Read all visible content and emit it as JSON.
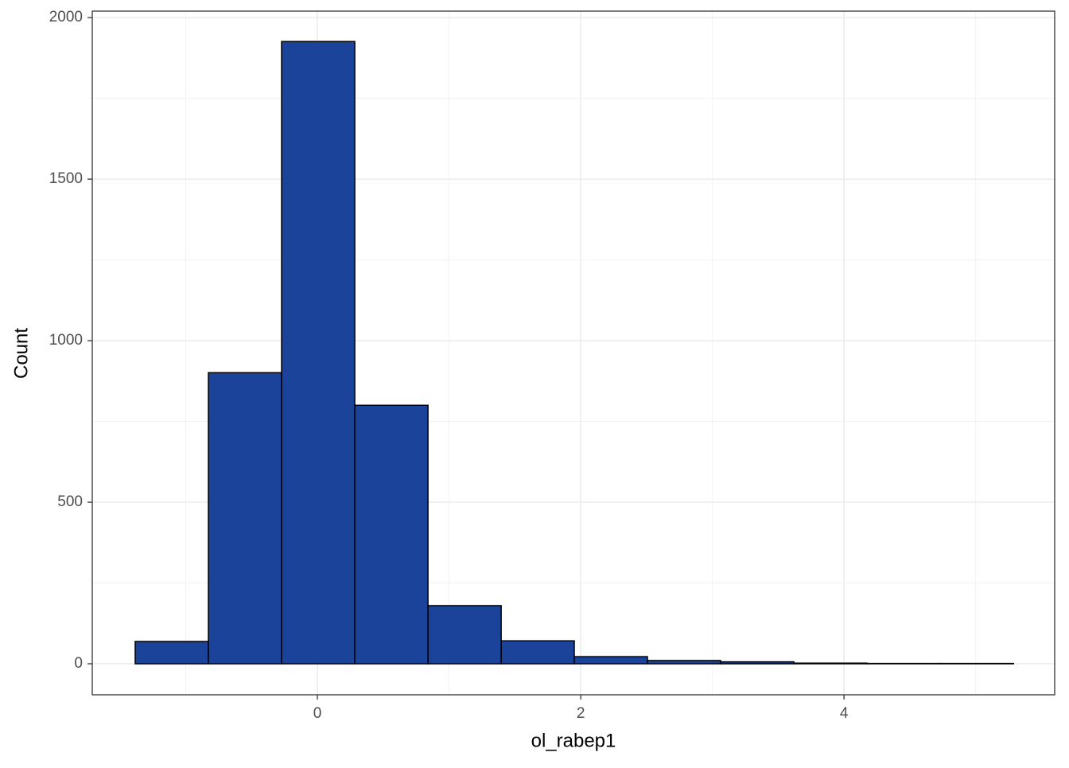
{
  "chart_data": {
    "type": "histogram",
    "x_label": "ol_rabep1",
    "y_label": "Count",
    "bins": [
      -1.384,
      -0.828,
      -0.272,
      0.284,
      0.84,
      1.396,
      1.951,
      2.507,
      3.063,
      3.619,
      4.175,
      4.731,
      5.287
    ],
    "values": [
      69,
      901,
      1926,
      800,
      180,
      71,
      22,
      10,
      6,
      2,
      1,
      1
    ],
    "color": "#1a4399",
    "edge_color": "#000000",
    "xlim": [
      -1.71,
      5.6
    ],
    "xticks": [
      0,
      2,
      4
    ],
    "ylim": [
      -96,
      2020
    ],
    "yticks": [
      0,
      500,
      1000,
      1500,
      2000
    ],
    "grid": true
  }
}
